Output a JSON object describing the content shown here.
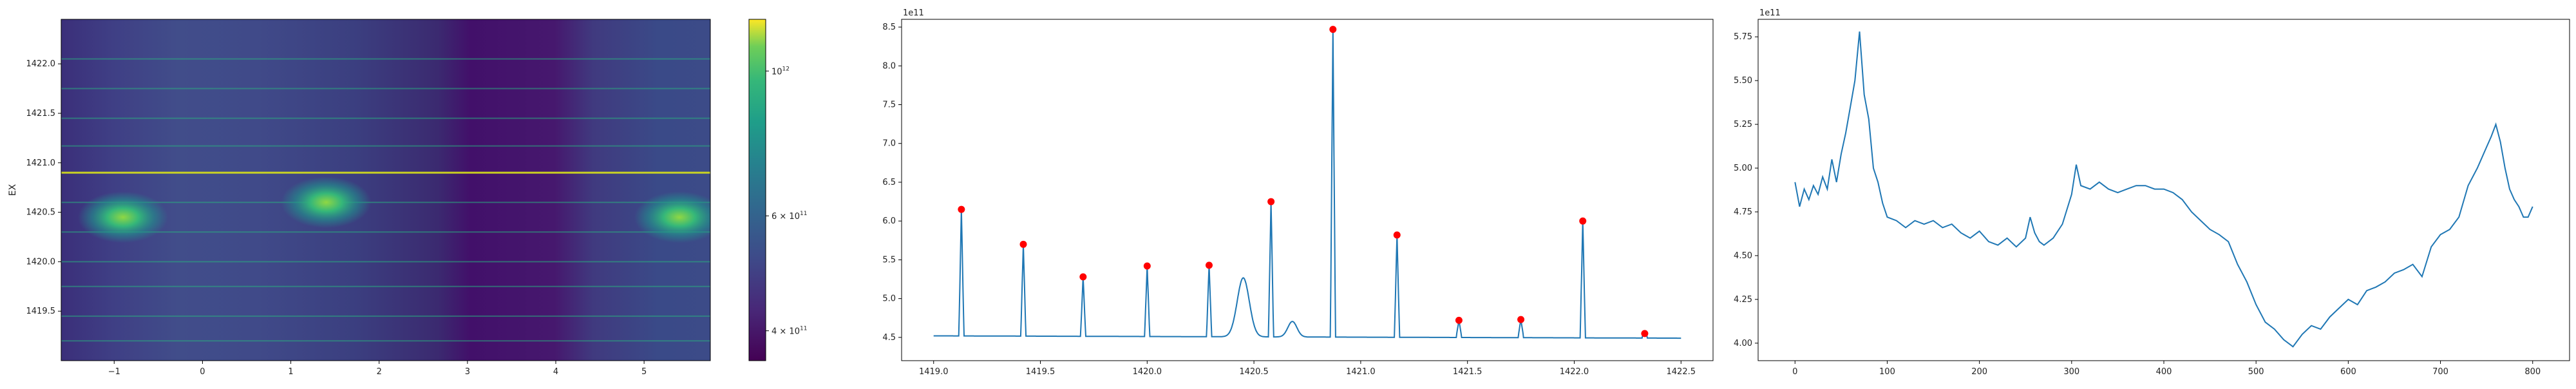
{
  "chart_data": [
    {
      "type": "heatmap",
      "xlim": [
        -1.6,
        5.75
      ],
      "ylim": [
        1419.0,
        1422.45
      ],
      "xticks": [
        -1,
        0,
        1,
        2,
        3,
        4,
        5
      ],
      "yticks": [
        1419.5,
        1420.0,
        1420.5,
        1421.0,
        1421.5,
        1422.0
      ],
      "xtick_labels": [
        "−1",
        "0",
        "1",
        "2",
        "3",
        "4",
        "5"
      ],
      "ytick_labels": [
        "1419.5",
        "1420.0",
        "1420.5",
        "1421.0",
        "1421.5",
        "1422.0"
      ],
      "ylabel": "EX",
      "colormap": "viridis",
      "colorbar": {
        "scale": "log",
        "range": [
          360000000000.0,
          1200000000000.0
        ],
        "ticks": [
          {
            "value": 1000000000000.0,
            "label": "10",
            "sup": "12"
          },
          {
            "value": 600000000000.0,
            "label": "6 × 10",
            "sup": "11"
          },
          {
            "value": 400000000000.0,
            "label": "4 × 10",
            "sup": "11"
          }
        ]
      },
      "horizontal_lines_y": [
        1419.2,
        1419.45,
        1419.75,
        1420.0,
        1420.3,
        1420.6,
        1420.9,
        1421.17,
        1421.45,
        1421.75,
        1422.05
      ],
      "bright_spots": [
        {
          "x": -0.9,
          "y": 1420.45
        },
        {
          "x": 1.4,
          "y": 1420.6
        },
        {
          "x": 5.4,
          "y": 1420.45
        }
      ]
    },
    {
      "type": "line",
      "title": "",
      "offset_label": "1e11",
      "xlim": [
        1418.85,
        1422.65
      ],
      "ylim": [
        4.2,
        8.6
      ],
      "xticks": [
        1419.0,
        1419.5,
        1420.0,
        1420.5,
        1421.0,
        1421.5,
        1422.0,
        1422.5
      ],
      "yticks": [
        4.5,
        5.0,
        5.5,
        6.0,
        6.5,
        7.0,
        7.5,
        8.0,
        8.5
      ],
      "xtick_labels": [
        "1419.0",
        "1419.5",
        "1420.0",
        "1420.5",
        "1421.0",
        "1421.5",
        "1422.0",
        "1422.5"
      ],
      "ytick_labels": [
        "4.5",
        "5.0",
        "5.5",
        "6.0",
        "6.5",
        "7.0",
        "7.5",
        "8.0",
        "8.5"
      ],
      "baseline": 4.52,
      "x_range": [
        1419.0,
        1422.5
      ],
      "peaks": [
        {
          "x": 1419.13,
          "y": 6.15
        },
        {
          "x": 1419.42,
          "y": 5.7
        },
        {
          "x": 1419.7,
          "y": 5.28
        },
        {
          "x": 1420.0,
          "y": 5.42
        },
        {
          "x": 1420.29,
          "y": 5.43
        },
        {
          "x": 1420.58,
          "y": 6.25
        },
        {
          "x": 1420.87,
          "y": 8.47
        },
        {
          "x": 1421.17,
          "y": 5.82
        },
        {
          "x": 1421.46,
          "y": 4.72
        },
        {
          "x": 1421.75,
          "y": 4.73
        },
        {
          "x": 1422.04,
          "y": 6.0
        },
        {
          "x": 1422.33,
          "y": 4.55
        }
      ],
      "bumps": [
        {
          "x": 1420.45,
          "y": 5.28,
          "width": 0.08
        },
        {
          "x": 1420.68,
          "y": 4.72,
          "width": 0.06
        }
      ],
      "line_color": "#1f77b4",
      "marker_color": "#ff0000"
    },
    {
      "type": "line",
      "title": "",
      "offset_label": "1e11",
      "xlim": [
        -40,
        840
      ],
      "ylim": [
        3.9,
        5.85
      ],
      "xticks": [
        0,
        100,
        200,
        300,
        400,
        500,
        600,
        700,
        800
      ],
      "yticks": [
        4.0,
        4.25,
        4.5,
        4.75,
        5.0,
        5.25,
        5.5,
        5.75
      ],
      "xtick_labels": [
        "0",
        "100",
        "200",
        "300",
        "400",
        "500",
        "600",
        "700",
        "800"
      ],
      "ytick_labels": [
        "4.00",
        "4.25",
        "4.50",
        "4.75",
        "5.00",
        "5.25",
        "5.50",
        "5.75"
      ],
      "x": [
        0,
        5,
        10,
        15,
        20,
        25,
        30,
        35,
        40,
        45,
        50,
        55,
        60,
        65,
        70,
        75,
        80,
        85,
        90,
        95,
        100,
        110,
        120,
        130,
        140,
        150,
        160,
        170,
        180,
        190,
        200,
        210,
        220,
        230,
        240,
        250,
        255,
        260,
        265,
        270,
        280,
        290,
        300,
        305,
        310,
        320,
        330,
        340,
        350,
        360,
        370,
        380,
        390,
        400,
        410,
        420,
        430,
        440,
        450,
        460,
        470,
        480,
        490,
        500,
        510,
        520,
        530,
        540,
        550,
        560,
        570,
        580,
        590,
        600,
        610,
        620,
        630,
        640,
        650,
        660,
        670,
        680,
        690,
        700,
        710,
        720,
        730,
        740,
        750,
        755,
        760,
        765,
        770,
        775,
        780,
        785,
        790,
        795,
        800
      ],
      "y": [
        4.92,
        4.78,
        4.88,
        4.82,
        4.9,
        4.85,
        4.95,
        4.88,
        5.05,
        4.92,
        5.08,
        5.2,
        5.35,
        5.5,
        5.78,
        5.42,
        5.28,
        5.0,
        4.92,
        4.8,
        4.72,
        4.7,
        4.66,
        4.7,
        4.68,
        4.7,
        4.66,
        4.68,
        4.63,
        4.6,
        4.64,
        4.58,
        4.56,
        4.6,
        4.55,
        4.6,
        4.72,
        4.63,
        4.58,
        4.56,
        4.6,
        4.68,
        4.85,
        5.02,
        4.9,
        4.88,
        4.92,
        4.88,
        4.86,
        4.88,
        4.9,
        4.9,
        4.88,
        4.88,
        4.86,
        4.82,
        4.75,
        4.7,
        4.65,
        4.62,
        4.58,
        4.45,
        4.35,
        4.22,
        4.12,
        4.08,
        4.02,
        3.98,
        4.05,
        4.1,
        4.08,
        4.15,
        4.2,
        4.25,
        4.22,
        4.3,
        4.32,
        4.35,
        4.4,
        4.42,
        4.45,
        4.38,
        4.55,
        4.62,
        4.65,
        4.72,
        4.9,
        5.0,
        5.12,
        5.18,
        5.25,
        5.15,
        5.0,
        4.88,
        4.82,
        4.78,
        4.72,
        4.72,
        4.78
      ],
      "line_color": "#1f77b4"
    }
  ]
}
